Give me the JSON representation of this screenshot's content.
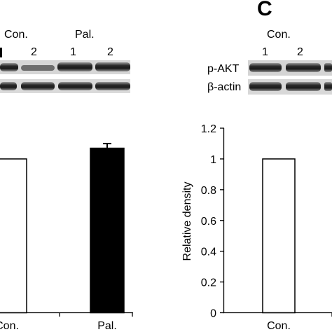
{
  "panel_letter": "C",
  "left": {
    "group_labels": [
      "Con.",
      "Pal."
    ],
    "lane_labels": [
      "2",
      "1",
      "2"
    ],
    "x_categories": [
      "Con.",
      "Pal."
    ]
  },
  "right": {
    "group_label": "Con.",
    "lane_labels": [
      "1",
      "2"
    ],
    "blot_labels": [
      "p-AKT",
      "β-actin"
    ],
    "y_label": "Relative density",
    "y_ticks": [
      "1.2",
      "1",
      "0.8",
      "0.6",
      "0.4",
      "0.2",
      "0"
    ],
    "x_category": "Con."
  },
  "colors": {
    "bar_con": "#ffffff",
    "bar_pal": "#000000",
    "outline": "#000000"
  },
  "chart_data": [
    {
      "type": "bar",
      "panel": "left",
      "categories": [
        "Con.",
        "Pal."
      ],
      "values": [
        1.0,
        1.07
      ],
      "error": [
        0,
        0.03
      ],
      "ylim": [
        0,
        1.2
      ]
    },
    {
      "type": "bar",
      "panel": "C",
      "categories": [
        "Con."
      ],
      "values": [
        1.0
      ],
      "ylabel": "Relative density",
      "ylim": [
        0,
        1.2
      ]
    }
  ]
}
